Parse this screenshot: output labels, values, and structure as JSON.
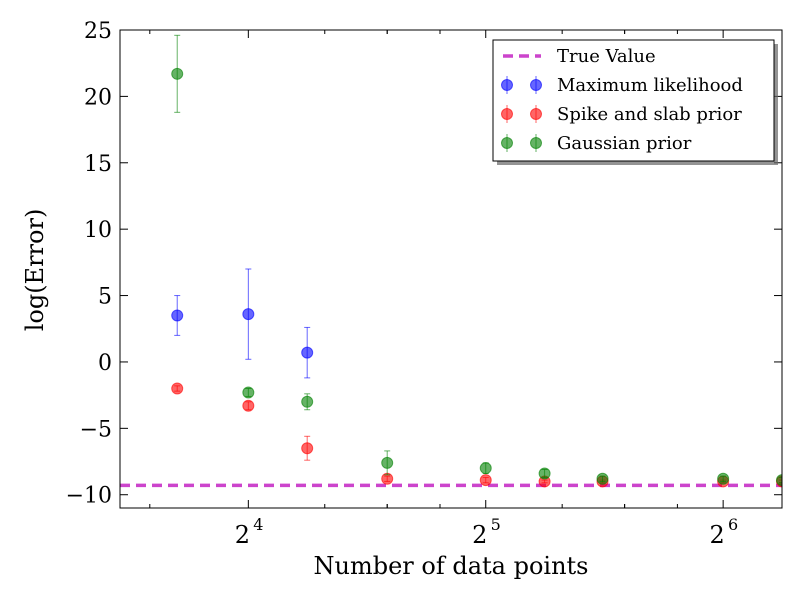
{
  "chart_data": {
    "type": "scatter",
    "xlabel": "Number of data points",
    "ylabel": "log(Error)",
    "x_scale": "log2",
    "xlim": [
      11.0,
      76.0
    ],
    "ylim": [
      -11,
      25
    ],
    "x_ticks": [
      {
        "value": 16,
        "base": "2",
        "exp": "4"
      },
      {
        "value": 32,
        "base": "2",
        "exp": "5"
      },
      {
        "value": 64,
        "base": "2",
        "exp": "6"
      }
    ],
    "y_ticks": [
      {
        "value": -10,
        "label": "−10"
      },
      {
        "value": -5,
        "label": "−5"
      },
      {
        "value": 0,
        "label": "0"
      },
      {
        "value": 5,
        "label": "5"
      },
      {
        "value": 10,
        "label": "10"
      },
      {
        "value": 15,
        "label": "15"
      },
      {
        "value": 20,
        "label": "20"
      },
      {
        "value": 25,
        "label": "25"
      }
    ],
    "grid": false,
    "legend_position": "top-right",
    "reference_line": {
      "name": "True Value",
      "y": -9.3,
      "color": "#cc44cc",
      "style": "dashed"
    },
    "series": [
      {
        "name": "Maximum likelihood",
        "color": "#0000ff",
        "x": [
          13,
          16,
          19,
          24,
          32,
          38,
          45,
          64,
          76
        ],
        "y": [
          3.5,
          3.6,
          0.7,
          null,
          null,
          null,
          null,
          null,
          null
        ],
        "err": [
          1.5,
          3.4,
          1.9,
          null,
          null,
          null,
          null,
          null,
          null
        ]
      },
      {
        "name": "Spike and slab prior",
        "color": "#ff0000",
        "x": [
          13,
          16,
          19,
          24,
          32,
          38,
          45,
          64,
          76
        ],
        "y": [
          -2.0,
          -3.3,
          -6.5,
          -8.8,
          -8.9,
          -9.0,
          -9.0,
          -9.0,
          -9.0
        ],
        "err": [
          0.2,
          0.3,
          0.9,
          0.2,
          0.2,
          0.1,
          0.1,
          0.1,
          0.1
        ]
      },
      {
        "name": "Gaussian prior",
        "color": "#008000",
        "x": [
          13,
          16,
          19,
          24,
          32,
          38,
          45,
          64,
          76
        ],
        "y": [
          21.7,
          -2.3,
          -3.0,
          -7.6,
          -8.0,
          -8.4,
          -8.8,
          -8.8,
          -8.9
        ],
        "err": [
          2.9,
          0.3,
          0.6,
          0.9,
          0.4,
          0.3,
          0.2,
          0.2,
          0.2
        ]
      }
    ]
  }
}
